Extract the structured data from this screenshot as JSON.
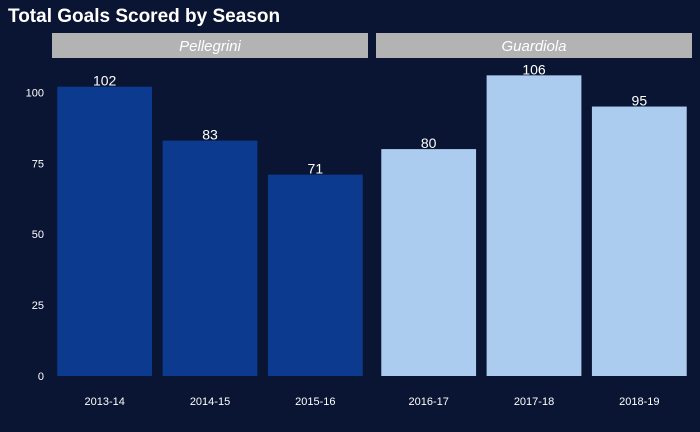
{
  "chart_data": {
    "type": "bar",
    "title": "Total Goals Scored by Season",
    "xlabel": "",
    "ylabel": "",
    "ylim": [
      0,
      110
    ],
    "yticks": [
      0,
      25,
      50,
      75,
      100
    ],
    "grid": false,
    "legend": "none",
    "colors": {
      "background": "#091533",
      "strip": "#b3b3b3",
      "Pellegrini": "#0b3a8f",
      "Guardiola": "#abcbef",
      "text": "#ffffff"
    },
    "facets": [
      {
        "name": "Pellegrini",
        "categories": [
          "2013-14",
          "2014-15",
          "2015-16"
        ],
        "values": [
          102,
          83,
          71
        ]
      },
      {
        "name": "Guardiola",
        "categories": [
          "2016-17",
          "2017-18",
          "2018-19"
        ],
        "values": [
          80,
          106,
          95
        ]
      }
    ]
  }
}
